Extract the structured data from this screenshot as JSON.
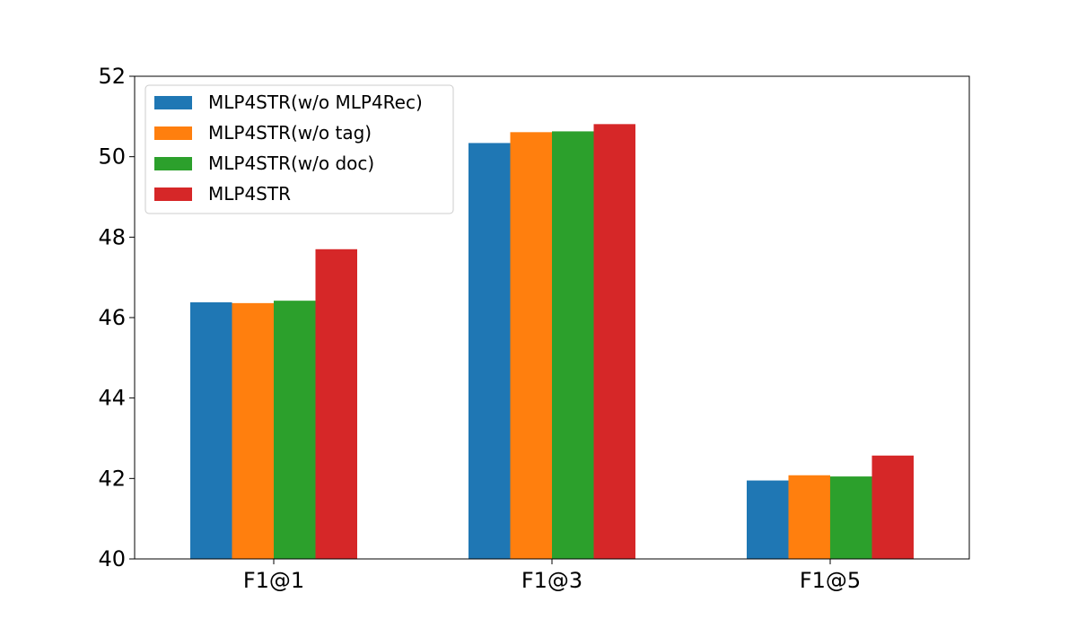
{
  "chart_data": {
    "type": "bar",
    "title": "",
    "xlabel": "",
    "ylabel": "",
    "categories": [
      "F1@1",
      "F1@3",
      "F1@5"
    ],
    "ylim": [
      40,
      52
    ],
    "yticks": [
      "40",
      "42",
      "44",
      "46",
      "48",
      "50",
      "52"
    ],
    "grid": false,
    "legend_position": "top-left",
    "series": [
      {
        "name": "MLP4STR(w/o MLP4Rec)",
        "color": "#1f77b4",
        "values": [
          46.38,
          50.34,
          41.95
        ]
      },
      {
        "name": "MLP4STR(w/o tag)",
        "color": "#ff7f0e",
        "values": [
          46.36,
          50.61,
          42.08
        ]
      },
      {
        "name": "MLP4STR(w/o doc)",
        "color": "#2ca02c",
        "values": [
          46.42,
          50.63,
          42.05
        ]
      },
      {
        "name": "MLP4STR",
        "color": "#d62728",
        "values": [
          47.7,
          50.81,
          42.57
        ]
      }
    ]
  }
}
